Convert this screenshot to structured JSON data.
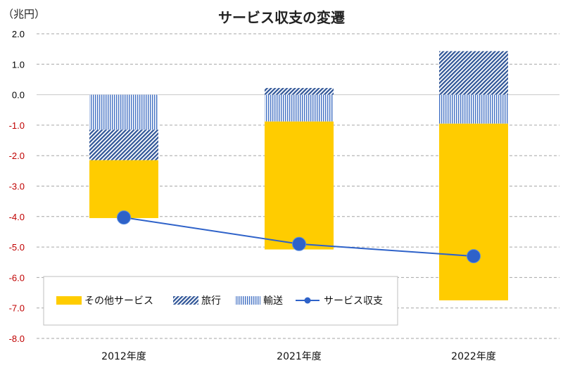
{
  "chart_data": {
    "type": "bar",
    "stacked": true,
    "title": "サービス収支の変遷",
    "unit_label": "（兆円）",
    "categories": [
      "2012年度",
      "2021年度",
      "2022年度"
    ],
    "ylim": [
      -8.0,
      2.0
    ],
    "yticks": [
      2.0,
      1.0,
      0.0,
      -1.0,
      -2.0,
      -3.0,
      -4.0,
      -5.0,
      -6.0,
      -7.0,
      -8.0
    ],
    "ytick_labels": [
      "2.0",
      "1.0",
      "0.0",
      "-1.0",
      "-2.0",
      "-3.0",
      "-4.0",
      "-5.0",
      "-6.0",
      "-7.0",
      "-8.0"
    ],
    "grid": true,
    "series": [
      {
        "name": "輸送",
        "values": [
          -1.15,
          -0.88,
          -0.95
        ],
        "color": "#4472c4",
        "pattern": "vertical"
      },
      {
        "name": "旅行",
        "values": [
          -1.0,
          0.22,
          1.43
        ],
        "color": "#2f5597",
        "pattern": "diagonal"
      },
      {
        "name": "その他サービス",
        "values": [
          -1.9,
          -4.2,
          -5.8
        ],
        "color": "#ffcc00",
        "pattern": "solid"
      }
    ],
    "line_series": {
      "name": "サービス収支",
      "values": [
        -4.03,
        -4.9,
        -5.3
      ],
      "color": "#2e62c9"
    },
    "legend": {
      "position": "bottom-left",
      "order": [
        "その他サービス",
        "旅行",
        "輸送",
        "サービス収支"
      ]
    }
  }
}
